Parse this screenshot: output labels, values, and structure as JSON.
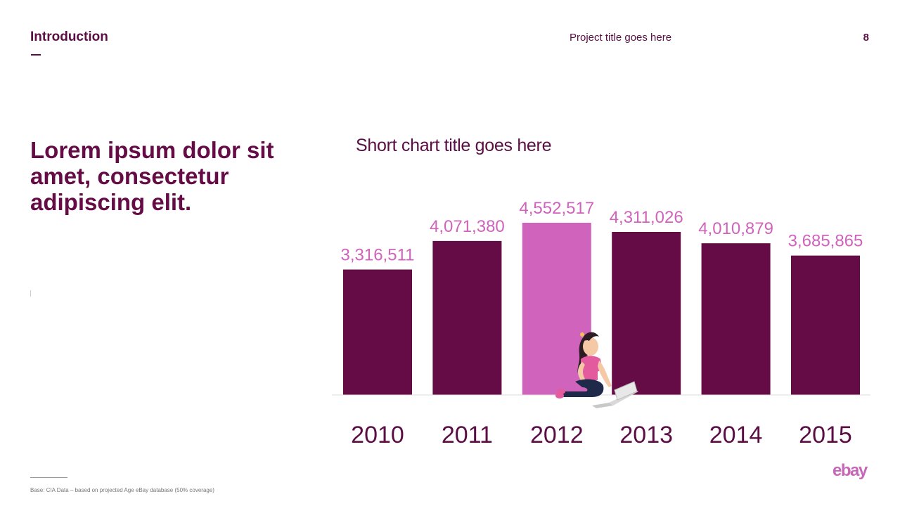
{
  "header": {
    "section_title": "Introduction",
    "project_title": "Project title goes here",
    "page_number": "8"
  },
  "headline": "Lorem ipsum dolor sit amet, consectetur adipiscing elit.",
  "chart_data": {
    "type": "bar",
    "title": "Short chart title goes here",
    "categories": [
      "2010",
      "2011",
      "2012",
      "2013",
      "2014",
      "2015"
    ],
    "values": [
      3316511,
      4071380,
      4552517,
      4311026,
      4010879,
      3685865
    ],
    "value_labels": [
      "3,316,511",
      "4,071,380",
      "4,552,517",
      "4,311,026",
      "4,010,879",
      "3,685,865"
    ],
    "highlight_index": 2,
    "colors": {
      "bar": "#650c46",
      "highlight": "#d063bb",
      "label": "#d063bb",
      "axis_text": "#5b0e44",
      "baseline": "#dddddd"
    },
    "xlabel": "",
    "ylabel": "",
    "grid": false
  },
  "footnote": "Base: CIA Data – based on projected Age eBay database (50% coverage)",
  "logo": {
    "text": "ebay",
    "icon": "ebay-logo"
  }
}
